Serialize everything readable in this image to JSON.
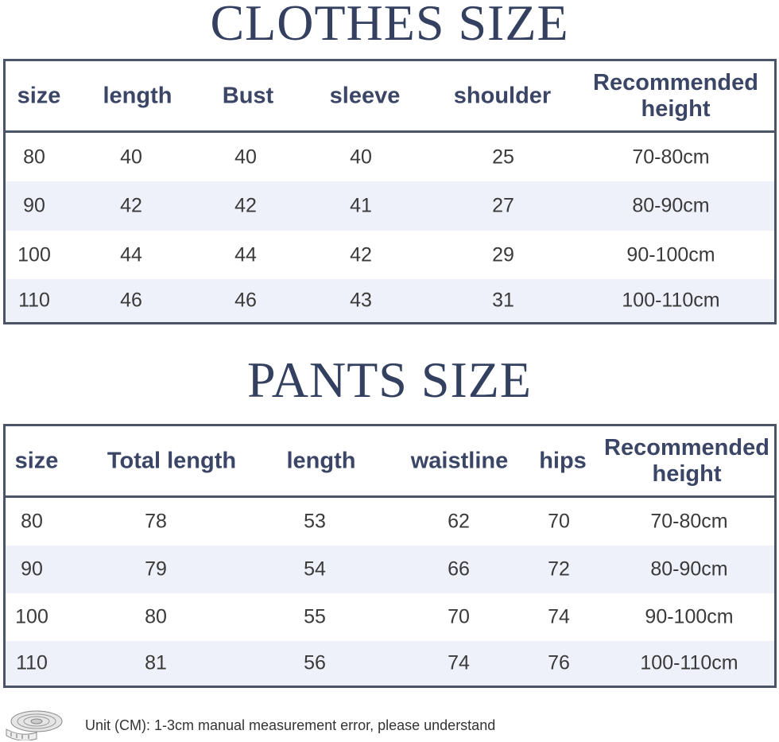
{
  "clothes": {
    "title": "CLOTHES SIZE",
    "headers": [
      "size",
      "length",
      "Bust",
      "sleeve",
      "shoulder",
      "Recommended height"
    ],
    "rows": [
      [
        "80",
        "40",
        "40",
        "40",
        "25",
        "70-80cm"
      ],
      [
        "90",
        "42",
        "42",
        "41",
        "27",
        "80-90cm"
      ],
      [
        "100",
        "44",
        "44",
        "42",
        "29",
        "90-100cm"
      ],
      [
        "110",
        "46",
        "46",
        "43",
        "31",
        "100-110cm"
      ]
    ]
  },
  "pants": {
    "title": "PANTS SIZE",
    "headers": [
      "size",
      "Total length",
      "length",
      "waistline",
      "hips",
      "Recommended height"
    ],
    "rows": [
      [
        "80",
        "78",
        "53",
        "62",
        "70",
        "70-80cm"
      ],
      [
        "90",
        "79",
        "54",
        "66",
        "72",
        "80-90cm"
      ],
      [
        "100",
        "80",
        "55",
        "70",
        "74",
        "90-100cm"
      ],
      [
        "110",
        "81",
        "56",
        "74",
        "76",
        "100-110cm"
      ]
    ]
  },
  "footer": {
    "icon": "measuring-tape-icon",
    "note": "Unit (CM): 1-3cm manual measurement error, please understand"
  },
  "colors": {
    "title": "#34405f",
    "border": "#4b5366",
    "alt_row": "#eef0fa"
  }
}
